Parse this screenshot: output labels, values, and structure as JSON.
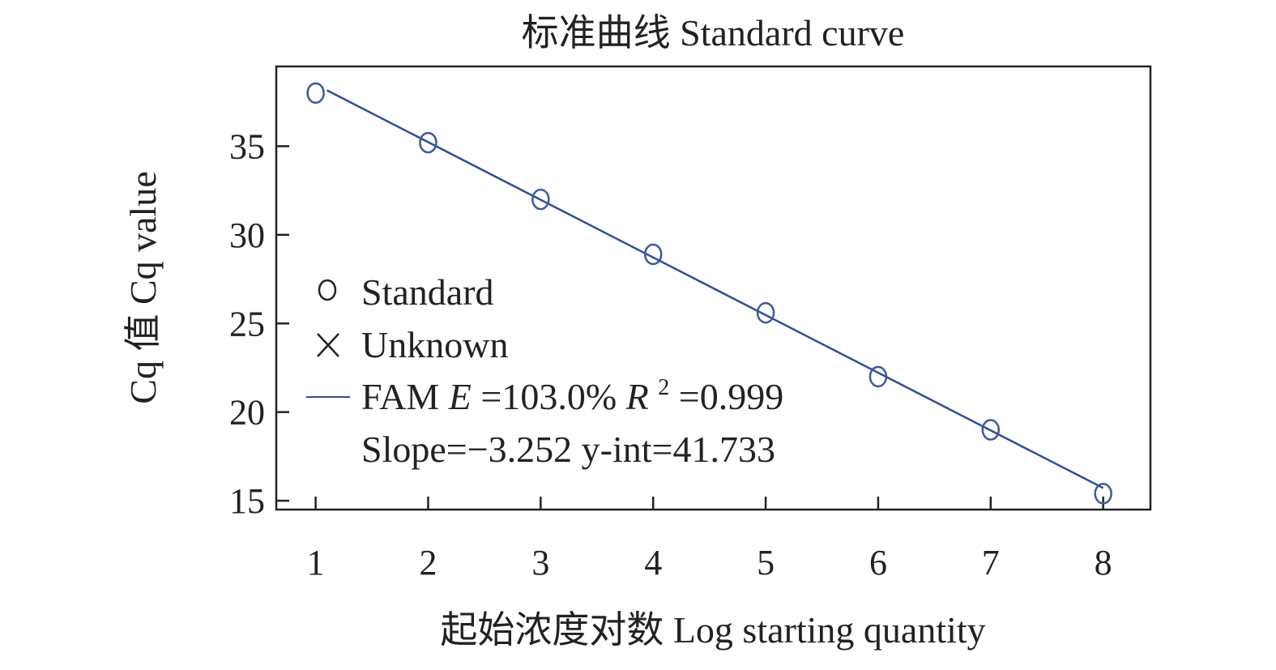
{
  "chart_data": {
    "type": "scatter",
    "title": "标准曲线 Standard curve",
    "xlabel": "起始浓度对数 Log starting quantity",
    "ylabel": "Cq 值 Cq value",
    "xlim": [
      0.65,
      8.42
    ],
    "ylim": [
      14.5,
      39.5
    ],
    "xticks": [
      1,
      2,
      3,
      4,
      5,
      6,
      7,
      8
    ],
    "yticks": [
      15,
      20,
      25,
      30,
      35
    ],
    "grid": false,
    "legend_position": "middle-left",
    "series": [
      {
        "name": "Standard",
        "kind": "points",
        "marker": "circle",
        "color": "#3d5a99",
        "x": [
          1,
          2,
          3,
          4,
          5,
          6,
          7,
          8
        ],
        "y": [
          38.0,
          35.2,
          32.0,
          28.9,
          25.6,
          22.0,
          19.0,
          15.4
        ]
      },
      {
        "name": "Unknown",
        "kind": "points",
        "marker": "cross",
        "color": "#222222",
        "x": [],
        "y": []
      },
      {
        "name_parts": {
          "prefix": "FAM ",
          "e_symbol": "E",
          "e_value": "=103.0% ",
          "r_symbol": "R",
          "r_sup": "2",
          "r_value": "=0.999"
        },
        "kind": "fit-line",
        "color": "#2f4f95",
        "x_range": [
          1.1,
          8
        ],
        "slope": -3.252,
        "intercept": 41.733
      }
    ],
    "annotations": [
      {
        "text": "Slope=−3.252 y-int=41.733"
      }
    ]
  }
}
